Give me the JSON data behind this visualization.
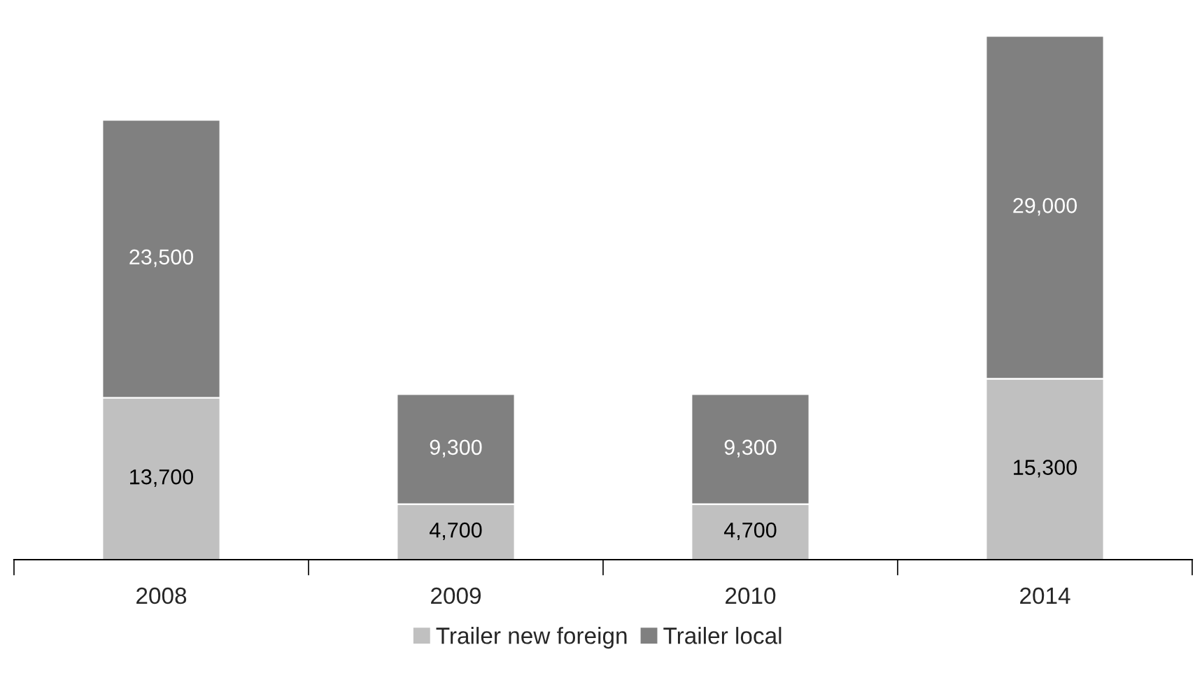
{
  "chart_data": {
    "type": "bar",
    "stacked": true,
    "legend": "bottom",
    "grid": false,
    "categories": [
      "2008",
      "2009",
      "2010",
      "2014"
    ],
    "series": [
      {
        "name": "Trailer new foreign",
        "color": "#c0c0c0",
        "values": [
          13700,
          4700,
          4700,
          15300
        ],
        "value_labels": [
          "13,700",
          "4,700",
          "4,700",
          "15,300"
        ]
      },
      {
        "name": "Trailer local",
        "color": "#808080",
        "values": [
          23500,
          9300,
          9300,
          29000
        ],
        "value_labels": [
          "23,500",
          "9,300",
          "9,300",
          "29,000"
        ]
      }
    ]
  }
}
